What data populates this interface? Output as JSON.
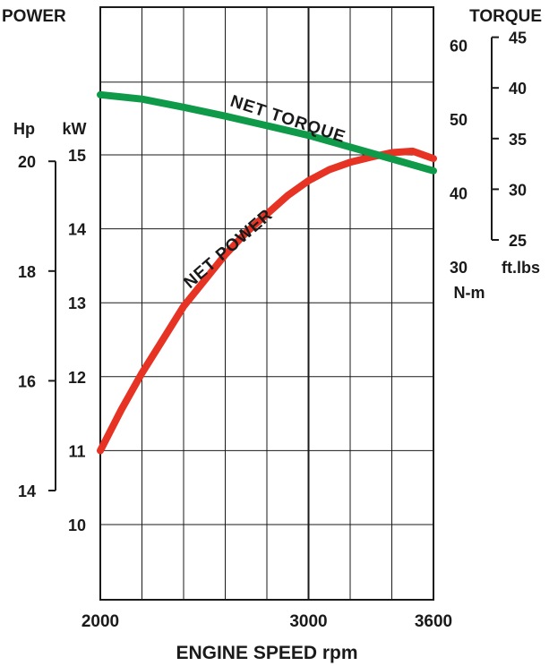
{
  "chart_data": {
    "type": "line",
    "xlabel": "ENGINE SPEED rpm",
    "xlim": [
      2000,
      3600
    ],
    "x_ticks": [
      2000,
      3000,
      3600
    ],
    "left_title": "POWER",
    "right_title": "TORQUE",
    "power_axis": {
      "kw": {
        "unit": "kW",
        "ylim": [
          9,
          16.5
        ],
        "ticks": [
          10,
          11,
          12,
          13,
          14,
          15
        ]
      },
      "hp": {
        "unit": "Hp",
        "ylim": [
          14,
          20
        ],
        "ticks": [
          14,
          16,
          18,
          20
        ]
      }
    },
    "torque_axis": {
      "nm": {
        "unit": "N-m",
        "ylim": [
          30,
          60
        ],
        "ticks": [
          30,
          40,
          50,
          60
        ]
      },
      "ftlbs": {
        "unit": "ft.lbs",
        "ylim": [
          25,
          45
        ],
        "ticks": [
          25,
          30,
          35,
          40,
          45
        ]
      }
    },
    "series": [
      {
        "name": "NET POWER",
        "axis": "power_kw",
        "color": "#e63323",
        "x": [
          2000,
          2100,
          2200,
          2300,
          2400,
          2500,
          2600,
          2700,
          2800,
          2900,
          3000,
          3100,
          3200,
          3300,
          3400,
          3500,
          3600
        ],
        "y": [
          11.0,
          11.55,
          12.05,
          12.5,
          12.95,
          13.3,
          13.65,
          13.95,
          14.2,
          14.45,
          14.65,
          14.8,
          14.9,
          14.97,
          15.03,
          15.05,
          14.95
        ]
      },
      {
        "name": "NET TORQUE",
        "axis": "torque_nm",
        "color": "#0e9a48",
        "x": [
          2000,
          2200,
          2400,
          2600,
          2800,
          3000,
          3200,
          3400,
          3600
        ],
        "y": [
          53.3,
          52.7,
          51.6,
          50.4,
          49.1,
          47.8,
          46.2,
          44.6,
          43.0
        ]
      }
    ]
  }
}
